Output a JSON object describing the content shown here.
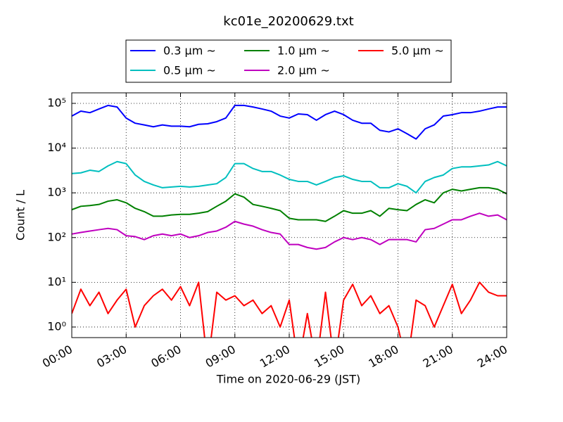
{
  "chart_data": {
    "type": "line",
    "title": "kc01e_20200629.txt",
    "x_label": "Time on 2020-06-29 (JST)",
    "y_label": "Count / L",
    "log_y": true,
    "grid": true,
    "legend": "top",
    "x": [
      "00:00",
      "00:30",
      "01:00",
      "01:30",
      "02:00",
      "02:30",
      "03:00",
      "03:30",
      "04:00",
      "04:30",
      "05:00",
      "05:30",
      "06:00",
      "06:30",
      "07:00",
      "07:30",
      "08:00",
      "08:30",
      "09:00",
      "09:30",
      "10:00",
      "10:30",
      "11:00",
      "11:30",
      "12:00",
      "12:30",
      "13:00",
      "13:30",
      "14:00",
      "14:30",
      "15:00",
      "15:30",
      "16:00",
      "16:30",
      "17:00",
      "17:30",
      "18:00",
      "18:30",
      "19:00",
      "19:30",
      "20:00",
      "20:30",
      "21:00",
      "21:30",
      "22:00",
      "22:30",
      "23:00",
      "23:30",
      "24:00"
    ],
    "xlim": [
      "00:00",
      "24:00"
    ],
    "xticks": [
      "00:00",
      "03:00",
      "06:00",
      "09:00",
      "12:00",
      "15:00",
      "18:00",
      "21:00",
      "24:00"
    ],
    "ylim": [
      0.58,
      172000
    ],
    "yticks": [
      {
        "value": 1,
        "label": "10⁰"
      },
      {
        "value": 10,
        "label": "10¹"
      },
      {
        "value": 100,
        "label": "10²"
      },
      {
        "value": 1000,
        "label": "10³"
      },
      {
        "value": 10000,
        "label": "10⁴"
      },
      {
        "value": 100000,
        "label": "10⁵"
      }
    ],
    "series": [
      {
        "name": "0.3 μm  ~",
        "color": "#0000ff",
        "values": [
          52000,
          67000,
          62000,
          75000,
          90000,
          83000,
          47000,
          36000,
          33000,
          30000,
          33000,
          31000,
          31000,
          30000,
          34000,
          35000,
          39000,
          47000,
          90000,
          90000,
          83000,
          75000,
          67000,
          52000,
          47000,
          58000,
          56000,
          42000,
          56000,
          67000,
          56000,
          42000,
          36000,
          36000,
          25000,
          23000,
          27000,
          21000,
          16000,
          27000,
          33000,
          52000,
          56000,
          62000,
          62000,
          67000,
          75000,
          83000,
          83000
        ]
      },
      {
        "name": "0.5 μm  ~",
        "color": "#00bfbf",
        "values": [
          2700,
          2800,
          3200,
          3000,
          4000,
          5000,
          4500,
          2500,
          1800,
          1500,
          1300,
          1350,
          1400,
          1350,
          1400,
          1500,
          1600,
          2200,
          4500,
          4500,
          3500,
          3000,
          3000,
          2500,
          2000,
          1800,
          1800,
          1500,
          1800,
          2200,
          2400,
          2000,
          1800,
          1800,
          1300,
          1300,
          1600,
          1400,
          1000,
          1800,
          2200,
          2500,
          3500,
          3800,
          3800,
          4000,
          4200,
          5000,
          4000
        ]
      },
      {
        "name": "1.0 μm  ~",
        "color": "#008000",
        "values": [
          420,
          500,
          520,
          550,
          650,
          700,
          600,
          450,
          380,
          300,
          300,
          320,
          330,
          330,
          350,
          380,
          500,
          650,
          950,
          800,
          550,
          500,
          450,
          400,
          270,
          250,
          250,
          250,
          230,
          300,
          400,
          350,
          350,
          400,
          300,
          450,
          420,
          400,
          550,
          700,
          600,
          1000,
          1200,
          1100,
          1200,
          1300,
          1300,
          1200,
          950
        ]
      },
      {
        "name": "2.0 μm  ~",
        "color": "#bf00bf",
        "values": [
          120,
          130,
          140,
          150,
          160,
          150,
          110,
          105,
          90,
          110,
          120,
          110,
          120,
          100,
          110,
          130,
          140,
          170,
          230,
          200,
          180,
          150,
          130,
          120,
          70,
          70,
          60,
          55,
          60,
          80,
          100,
          90,
          100,
          90,
          70,
          90,
          90,
          90,
          80,
          150,
          160,
          200,
          250,
          250,
          300,
          350,
          300,
          320,
          250
        ]
      },
      {
        "name": "5.0 μm  ~",
        "color": "#ff0000",
        "values": [
          2,
          7,
          3,
          6,
          2,
          4,
          7,
          1,
          3,
          5,
          7,
          4,
          8,
          3,
          10,
          0,
          6,
          4,
          5,
          3,
          4,
          2,
          3,
          1,
          4,
          0,
          2,
          0,
          6,
          0,
          4,
          9,
          3,
          5,
          2,
          3,
          1,
          0,
          4,
          3,
          1,
          3,
          9,
          2,
          4,
          10,
          6,
          5,
          5
        ]
      }
    ]
  }
}
